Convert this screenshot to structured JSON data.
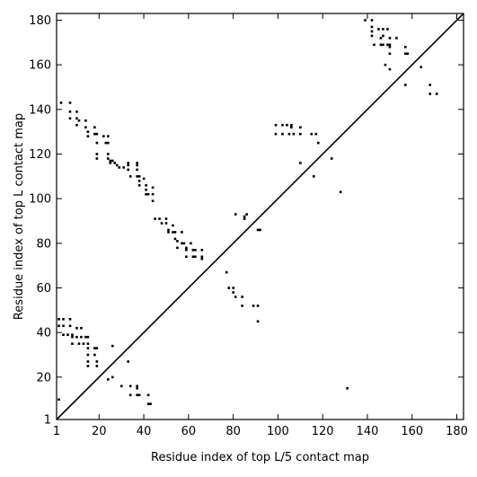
{
  "chart_data": {
    "type": "scatter",
    "title": "",
    "xlabel": "Residue index of top L/5 contact map",
    "ylabel": "Residue index of top L contact map",
    "xlim": [
      1,
      183
    ],
    "ylim": [
      1,
      183
    ],
    "xticks": [
      1,
      20,
      40,
      60,
      80,
      100,
      120,
      140,
      160,
      180
    ],
    "yticks": [
      1,
      20,
      40,
      60,
      80,
      100,
      120,
      140,
      160,
      180
    ],
    "grid": false,
    "legend": "none",
    "diagonal": {
      "from": [
        1,
        1
      ],
      "to": [
        183,
        183
      ]
    },
    "series": [
      {
        "points": [
          [
            3,
            143
          ],
          [
            7,
            143
          ],
          [
            7,
            139
          ],
          [
            7,
            136
          ],
          [
            10,
            139
          ],
          [
            10,
            136
          ],
          [
            10,
            133
          ],
          [
            11,
            135
          ],
          [
            14,
            135
          ],
          [
            14,
            132
          ],
          [
            15,
            130
          ],
          [
            15,
            128
          ],
          [
            18,
            132
          ],
          [
            18,
            129
          ],
          [
            19,
            129
          ],
          [
            19,
            125
          ],
          [
            19,
            120
          ],
          [
            19,
            118
          ],
          [
            22,
            128
          ],
          [
            23,
            125
          ],
          [
            24,
            128
          ],
          [
            24,
            125
          ],
          [
            24,
            120
          ],
          [
            24,
            118
          ],
          [
            25,
            117
          ],
          [
            25,
            116
          ],
          [
            26,
            117
          ],
          [
            27,
            116
          ],
          [
            28,
            115
          ],
          [
            29,
            114
          ],
          [
            31,
            114
          ],
          [
            33,
            116
          ],
          [
            33,
            115
          ],
          [
            33,
            113
          ],
          [
            34,
            110
          ],
          [
            37,
            116
          ],
          [
            37,
            115
          ],
          [
            37,
            113
          ],
          [
            37,
            110
          ],
          [
            38,
            110
          ],
          [
            38,
            108
          ],
          [
            38,
            106
          ],
          [
            40,
            109
          ],
          [
            41,
            106
          ],
          [
            41,
            104
          ],
          [
            41,
            102
          ],
          [
            42,
            102
          ],
          [
            44,
            105
          ],
          [
            44,
            102
          ],
          [
            44,
            99
          ],
          [
            45,
            91
          ],
          [
            47,
            91
          ],
          [
            48,
            89
          ],
          [
            50,
            91
          ],
          [
            50,
            89
          ],
          [
            51,
            86
          ],
          [
            51,
            85
          ],
          [
            53,
            88
          ],
          [
            53,
            85
          ],
          [
            54,
            85
          ],
          [
            54,
            82
          ],
          [
            55,
            81
          ],
          [
            55,
            78
          ],
          [
            57,
            85
          ],
          [
            57,
            80
          ],
          [
            58,
            80
          ],
          [
            59,
            78
          ],
          [
            59,
            77
          ],
          [
            59,
            74
          ],
          [
            61,
            80
          ],
          [
            62,
            77
          ],
          [
            62,
            74
          ],
          [
            63,
            74
          ],
          [
            63,
            77
          ],
          [
            66,
            77
          ],
          [
            66,
            74
          ],
          [
            66,
            73
          ],
          [
            77,
            67
          ],
          [
            78,
            60
          ],
          [
            80,
            60
          ],
          [
            80,
            58
          ],
          [
            81,
            56
          ],
          [
            81,
            93
          ],
          [
            84,
            56
          ],
          [
            84,
            52
          ],
          [
            85,
            92
          ],
          [
            85,
            91
          ],
          [
            86,
            93
          ],
          [
            89,
            52
          ],
          [
            91,
            52
          ],
          [
            91,
            45
          ],
          [
            91,
            86
          ],
          [
            92,
            86
          ],
          [
            99,
            133
          ],
          [
            99,
            129
          ],
          [
            102,
            133
          ],
          [
            102,
            129
          ],
          [
            104,
            133
          ],
          [
            105,
            129
          ],
          [
            106,
            133
          ],
          [
            106,
            132
          ],
          [
            107,
            129
          ],
          [
            110,
            132
          ],
          [
            110,
            129
          ],
          [
            110,
            116
          ],
          [
            115,
            129
          ],
          [
            116,
            110
          ],
          [
            117,
            129
          ],
          [
            118,
            125
          ],
          [
            124,
            118
          ],
          [
            128,
            103
          ],
          [
            131,
            15
          ],
          [
            139,
            180
          ],
          [
            142,
            180
          ],
          [
            142,
            177
          ],
          [
            142,
            175
          ],
          [
            142,
            173
          ],
          [
            143,
            169
          ],
          [
            145,
            176
          ],
          [
            146,
            172
          ],
          [
            146,
            169
          ],
          [
            147,
            176
          ],
          [
            147,
            173
          ],
          [
            147,
            169
          ],
          [
            148,
            160
          ],
          [
            149,
            176
          ],
          [
            149,
            169
          ],
          [
            150,
            172
          ],
          [
            150,
            169
          ],
          [
            150,
            168
          ],
          [
            150,
            165
          ],
          [
            150,
            158
          ],
          [
            153,
            172
          ],
          [
            157,
            168
          ],
          [
            157,
            165
          ],
          [
            157,
            151
          ],
          [
            158,
            165
          ],
          [
            164,
            159
          ],
          [
            168,
            151
          ],
          [
            168,
            147
          ],
          [
            171,
            147
          ],
          [
            2,
            46
          ],
          [
            2,
            43
          ],
          [
            2,
            10
          ],
          [
            4,
            46
          ],
          [
            4,
            43
          ],
          [
            4,
            39
          ],
          [
            6,
            39
          ],
          [
            7,
            46
          ],
          [
            7,
            43
          ],
          [
            8,
            39
          ],
          [
            8,
            38
          ],
          [
            8,
            35
          ],
          [
            10,
            42
          ],
          [
            10,
            38
          ],
          [
            11,
            35
          ],
          [
            12,
            42
          ],
          [
            12,
            38
          ],
          [
            13,
            35
          ],
          [
            14,
            38
          ],
          [
            15,
            38
          ],
          [
            15,
            35
          ],
          [
            15,
            33
          ],
          [
            15,
            30
          ],
          [
            15,
            27
          ],
          [
            15,
            25
          ],
          [
            18,
            33
          ],
          [
            18,
            30
          ],
          [
            19,
            27
          ],
          [
            19,
            25
          ],
          [
            19,
            33
          ],
          [
            24,
            19
          ],
          [
            26,
            34
          ],
          [
            26,
            20
          ],
          [
            30,
            16
          ],
          [
            33,
            27
          ],
          [
            34,
            16
          ],
          [
            34,
            12
          ],
          [
            37,
            16
          ],
          [
            37,
            15
          ],
          [
            37,
            12
          ],
          [
            38,
            12
          ],
          [
            42,
            12
          ],
          [
            42,
            8
          ],
          [
            43,
            8
          ]
        ]
      }
    ]
  }
}
